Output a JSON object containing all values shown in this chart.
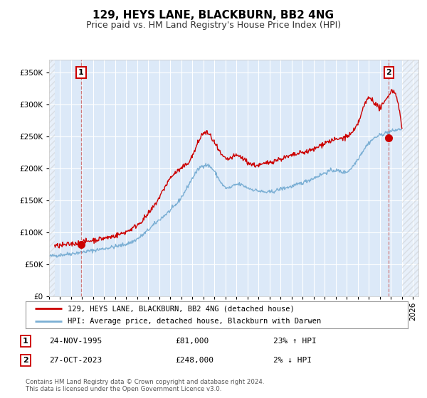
{
  "title": "129, HEYS LANE, BLACKBURN, BB2 4NG",
  "subtitle": "Price paid vs. HM Land Registry's House Price Index (HPI)",
  "xlim": [
    1993.0,
    2026.5
  ],
  "ylim": [
    0,
    370000
  ],
  "yticks": [
    0,
    50000,
    100000,
    150000,
    200000,
    250000,
    300000,
    350000
  ],
  "ytick_labels": [
    "£0",
    "£50K",
    "£100K",
    "£150K",
    "£200K",
    "£250K",
    "£300K",
    "£350K"
  ],
  "xticks": [
    1993,
    1994,
    1995,
    1996,
    1997,
    1998,
    1999,
    2000,
    2001,
    2002,
    2003,
    2004,
    2005,
    2006,
    2007,
    2008,
    2009,
    2010,
    2011,
    2012,
    2013,
    2014,
    2015,
    2016,
    2017,
    2018,
    2019,
    2020,
    2021,
    2022,
    2023,
    2024,
    2025,
    2026
  ],
  "background_color": "#dce9f8",
  "outer_bg_color": "#ffffff",
  "grid_color": "#ffffff",
  "hpi_color": "#7bafd4",
  "price_color": "#cc0000",
  "point1_x": 1995.9,
  "point1_y": 81000,
  "point2_x": 2023.82,
  "point2_y": 248000,
  "vline1_x": 1995.9,
  "vline2_x": 2023.82,
  "legend_label1": "129, HEYS LANE, BLACKBURN, BB2 4NG (detached house)",
  "legend_label2": "HPI: Average price, detached house, Blackburn with Darwen",
  "table_row1": [
    "1",
    "24-NOV-1995",
    "£81,000",
    "23% ↑ HPI"
  ],
  "table_row2": [
    "2",
    "27-OCT-2023",
    "£248,000",
    "2% ↓ HPI"
  ],
  "footer1": "Contains HM Land Registry data © Crown copyright and database right 2024.",
  "footer2": "This data is licensed under the Open Government Licence v3.0.",
  "title_fontsize": 11,
  "subtitle_fontsize": 9,
  "tick_fontsize": 7.5
}
